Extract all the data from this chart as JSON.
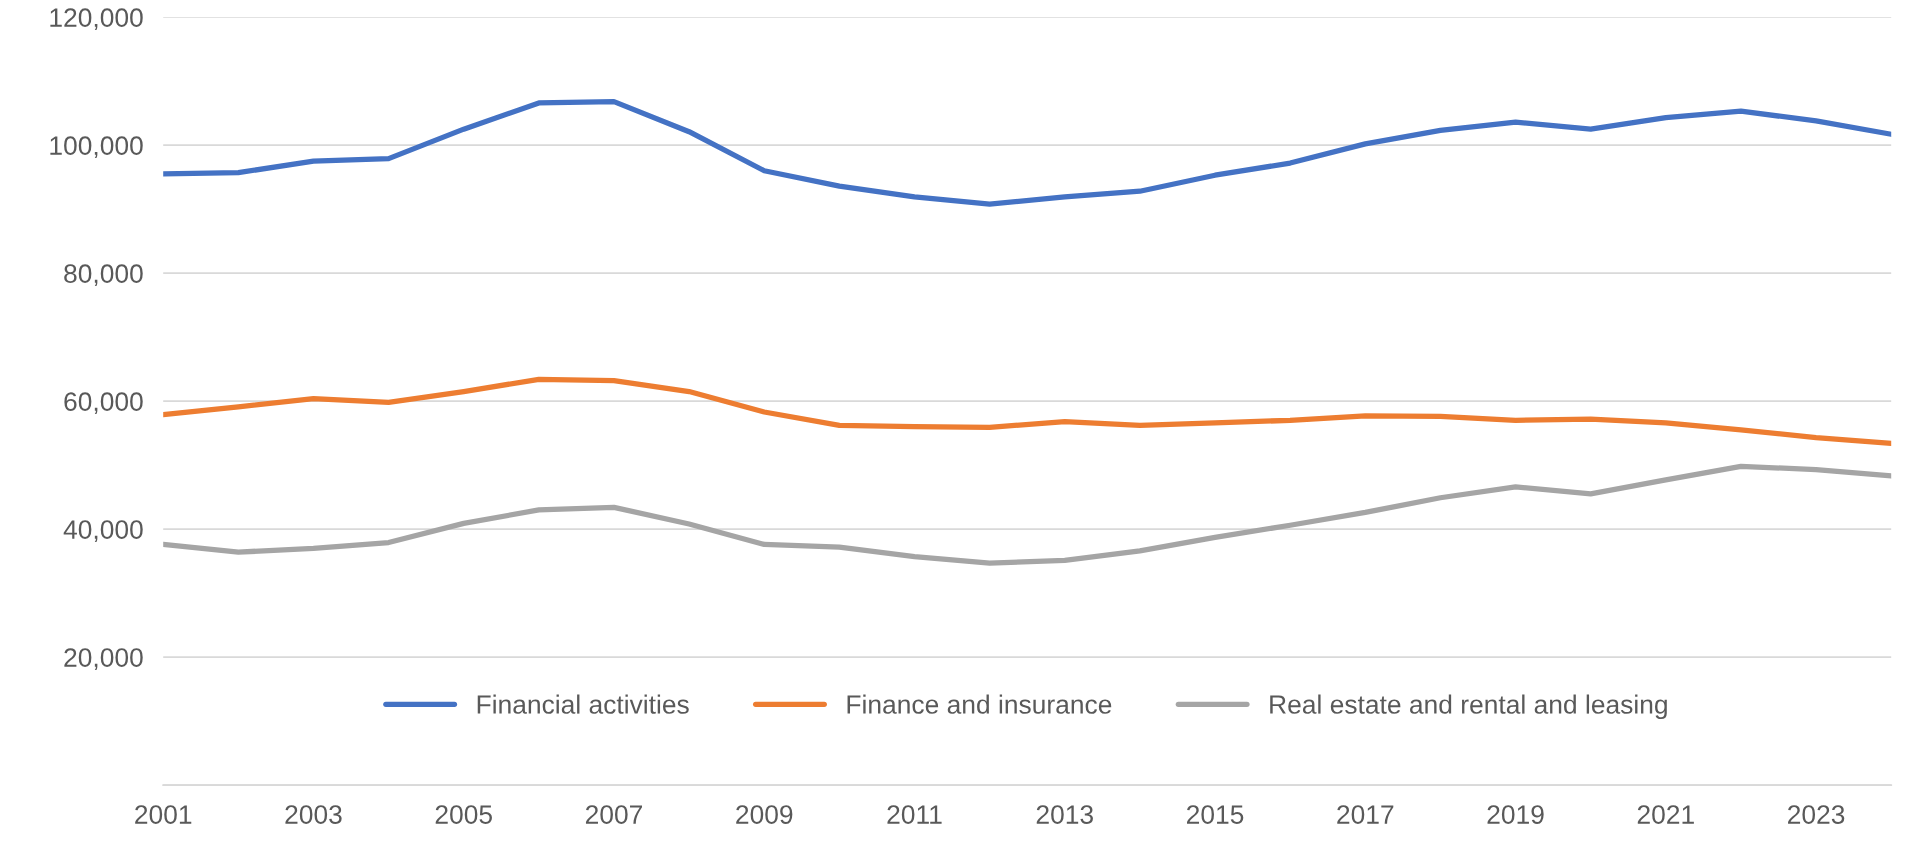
{
  "chart_data": {
    "type": "line",
    "x": [
      2001,
      2002,
      2003,
      2004,
      2005,
      2006,
      2007,
      2008,
      2009,
      2010,
      2011,
      2012,
      2013,
      2014,
      2015,
      2016,
      2017,
      2018,
      2019,
      2020,
      2021,
      2022,
      2023,
      2024
    ],
    "series": [
      {
        "name": "Financial activities",
        "color": "#4472c4",
        "values": [
          95500,
          95700,
          97500,
          97900,
          102500,
          106600,
          106800,
          102100,
          96000,
          93600,
          91900,
          90800,
          91900,
          92800,
          95300,
          97200,
          100200,
          102300,
          103600,
          102500,
          104300,
          105300,
          103800,
          101700
        ]
      },
      {
        "name": "Finance and insurance",
        "color": "#ed7d31",
        "values": [
          57900,
          59100,
          60400,
          59800,
          61500,
          63400,
          63200,
          61500,
          58300,
          56200,
          56000,
          55900,
          56800,
          56200,
          56600,
          57000,
          57700,
          57600,
          57000,
          57200,
          56600,
          55500,
          54300,
          53400
        ]
      },
      {
        "name": "Real estate and rental and leasing",
        "color": "#a5a5a5",
        "values": [
          37600,
          36400,
          37000,
          37900,
          40900,
          43000,
          43400,
          40800,
          37600,
          37200,
          35700,
          34700,
          35100,
          36600,
          38700,
          40600,
          42600,
          44900,
          46600,
          45500,
          47700,
          49800,
          49300,
          48300
        ]
      }
    ],
    "xlim": [
      2001,
      2024
    ],
    "xticks": [
      2001,
      2003,
      2005,
      2007,
      2009,
      2011,
      2013,
      2015,
      2017,
      2019,
      2021,
      2023
    ],
    "ylim": [
      0,
      120000
    ],
    "yticks": [
      {
        "value": 0,
        "label": null
      },
      {
        "value": 20000,
        "label": "20,000"
      },
      {
        "value": 40000,
        "label": "40,000"
      },
      {
        "value": 60000,
        "label": "60,000"
      },
      {
        "value": 80000,
        "label": "80,000"
      },
      {
        "value": 100000,
        "label": "100,000"
      },
      {
        "value": 120000,
        "label": "120,000"
      }
    ],
    "grid": "y",
    "legend": "bottom",
    "marker": "none",
    "line_style": "solid"
  }
}
